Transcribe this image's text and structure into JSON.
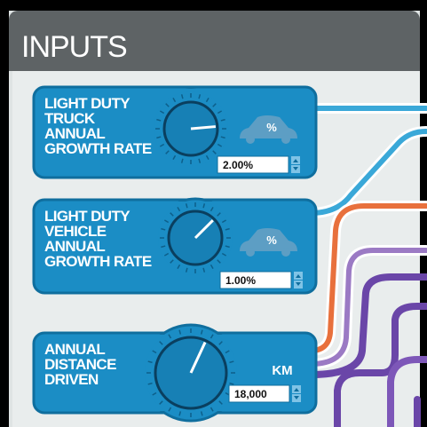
{
  "header": {
    "title": "INPUTS"
  },
  "cards": [
    {
      "label_lines": [
        "LIGHT DUTY",
        "TRUCK",
        "ANNUAL",
        "GROWTH RATE"
      ],
      "unit": "%",
      "value": "2.00%"
    },
    {
      "label_lines": [
        "LIGHT DUTY",
        "VEHICLE",
        "ANNUAL",
        "GROWTH RATE"
      ],
      "unit": "%",
      "value": "1.00%"
    },
    {
      "label_lines": [
        "ANNUAL",
        "DISTANCE",
        "DRIVEN"
      ],
      "unit": "KM",
      "value": "18,000"
    }
  ]
}
